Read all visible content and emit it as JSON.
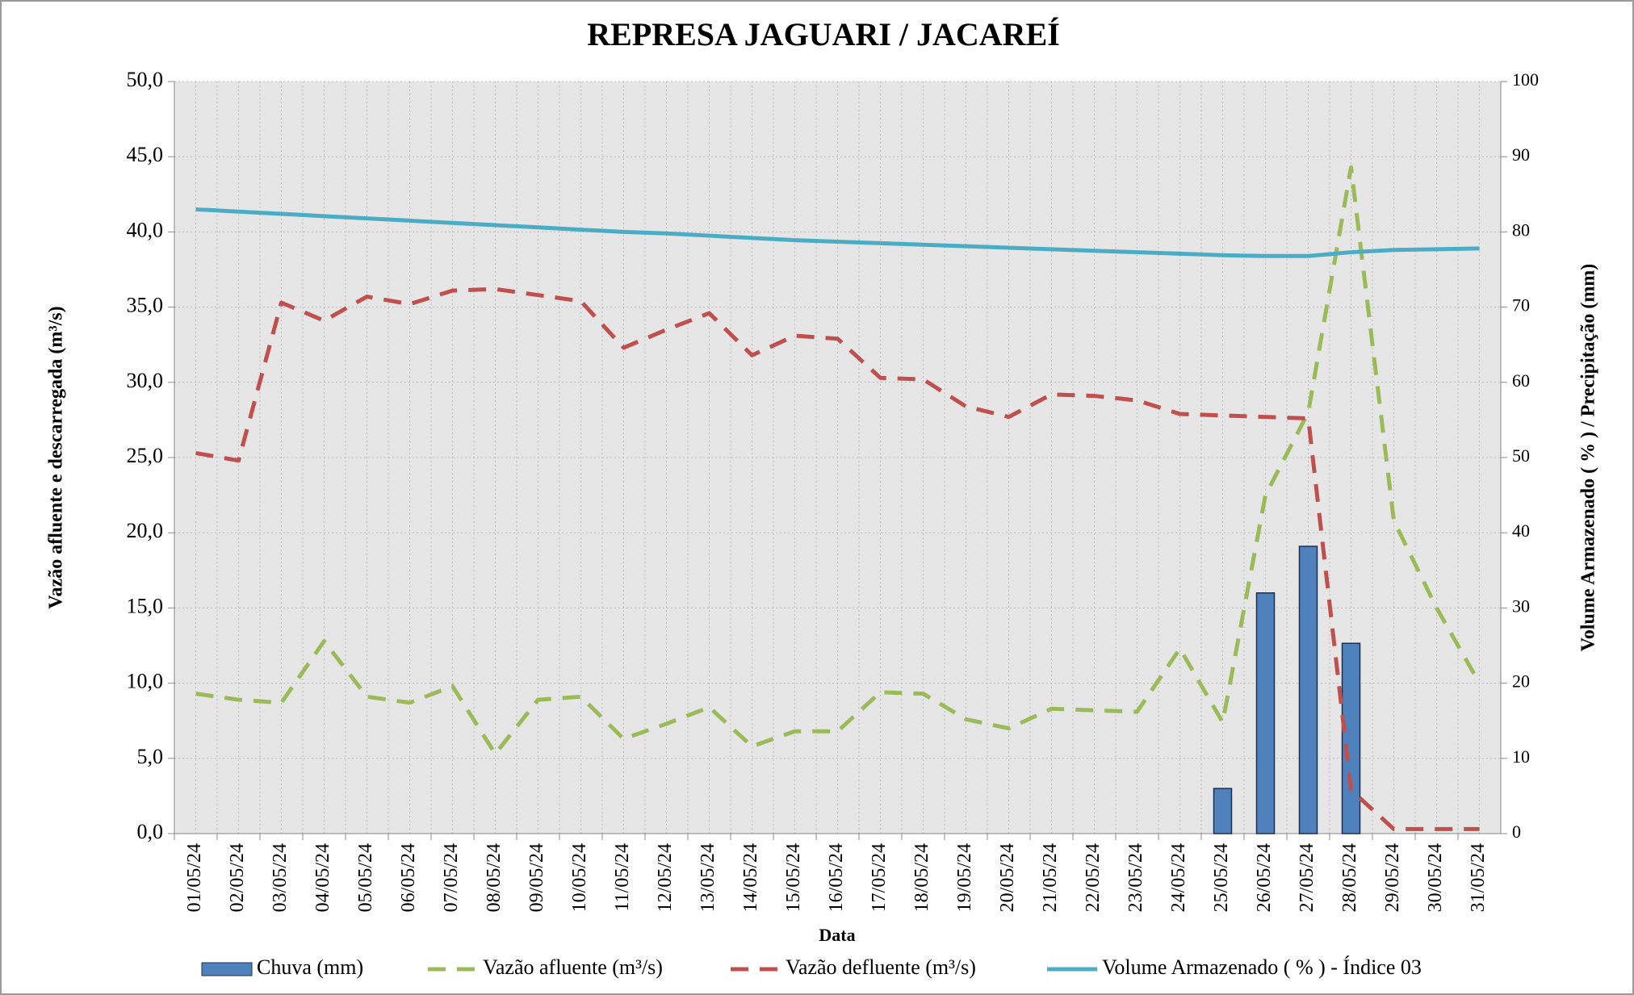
{
  "chart_data": {
    "type": "combo",
    "title": "REPRESA JAGUARI / JACAREÍ",
    "x_label": "Data",
    "y_label": "Vazão afluente e descarregada (m³/s)",
    "y2_label": "Volume Armazenado ( % ) / Precipitação  (mm)",
    "categories": [
      "01/05/24",
      "02/05/24",
      "03/05/24",
      "04/05/24",
      "05/05/24",
      "06/05/24",
      "07/05/24",
      "08/05/24",
      "09/05/24",
      "10/05/24",
      "11/05/24",
      "12/05/24",
      "13/05/24",
      "14/05/24",
      "15/05/24",
      "16/05/24",
      "17/05/24",
      "18/05/24",
      "19/05/24",
      "20/05/24",
      "21/05/24",
      "22/05/24",
      "23/05/24",
      "24/05/24",
      "25/05/24",
      "26/05/24",
      "27/05/24",
      "28/05/24",
      "29/05/24",
      "30/05/24",
      "31/05/24"
    ],
    "ylim": [
      0,
      50
    ],
    "yticks": [
      {
        "value": 0,
        "label": "0,0"
      },
      {
        "value": 5,
        "label": "5,0"
      },
      {
        "value": 10,
        "label": "10,0"
      },
      {
        "value": 15,
        "label": "15,0"
      },
      {
        "value": 20,
        "label": "20,0"
      },
      {
        "value": 25,
        "label": "25,0"
      },
      {
        "value": 30,
        "label": "30,0"
      },
      {
        "value": 35,
        "label": "35,0"
      },
      {
        "value": 40,
        "label": "40,0"
      },
      {
        "value": 45,
        "label": "45,0"
      },
      {
        "value": 50,
        "label": "50,0"
      }
    ],
    "y2lim": [
      0,
      100
    ],
    "y2ticks": [
      0,
      10,
      20,
      30,
      40,
      50,
      60,
      70,
      80,
      90,
      100
    ],
    "grid": true,
    "series": [
      {
        "name": "Chuva (mm)",
        "type": "bar",
        "axis": "y2",
        "color": "#4f81bd",
        "values": [
          0,
          0,
          0,
          0,
          0,
          0,
          0,
          0,
          0,
          0,
          0,
          0,
          0,
          0,
          0,
          0,
          0,
          0,
          0,
          0,
          0,
          0,
          0,
          0,
          6,
          32,
          38.2,
          25.3,
          0,
          0,
          0
        ]
      },
      {
        "name": "Vazão afluente (m³/s)",
        "type": "line",
        "style": "dashed",
        "color": "#9bbb59",
        "values": [
          9.3,
          8.9,
          8.7,
          12.8,
          9.1,
          8.7,
          9.8,
          5.3,
          8.9,
          9.1,
          6.3,
          7.3,
          8.4,
          5.8,
          6.8,
          6.8,
          9.4,
          9.3,
          7.6,
          7.0,
          8.3,
          8.2,
          8.1,
          12.3,
          7.4,
          22.5,
          28.0,
          44.3,
          20.8,
          15.0,
          10.0
        ]
      },
      {
        "name": "Vazão defluente (m³/s)",
        "type": "line",
        "style": "dashed",
        "color": "#c0504d",
        "values": [
          25.3,
          24.8,
          35.3,
          34.1,
          35.7,
          35.2,
          36.1,
          36.2,
          35.8,
          35.4,
          32.3,
          33.5,
          34.6,
          31.8,
          33.1,
          32.9,
          30.3,
          30.2,
          28.4,
          27.7,
          29.2,
          29.1,
          28.8,
          27.9,
          27.8,
          27.7,
          27.6,
          2.9,
          0.3,
          0.3,
          0.3
        ]
      },
      {
        "name": "Volume Armazenado ( % ) - Índice 03",
        "type": "line",
        "style": "solid",
        "axis": "y2",
        "color": "#4bacc6",
        "values": [
          83.0,
          82.7,
          82.4,
          82.1,
          81.8,
          81.5,
          81.2,
          80.9,
          80.6,
          80.3,
          80.0,
          79.8,
          79.5,
          79.2,
          78.9,
          78.7,
          78.5,
          78.3,
          78.1,
          77.9,
          77.7,
          77.5,
          77.3,
          77.1,
          76.9,
          76.8,
          76.8,
          77.3,
          77.6,
          77.7,
          77.8
        ]
      }
    ]
  }
}
